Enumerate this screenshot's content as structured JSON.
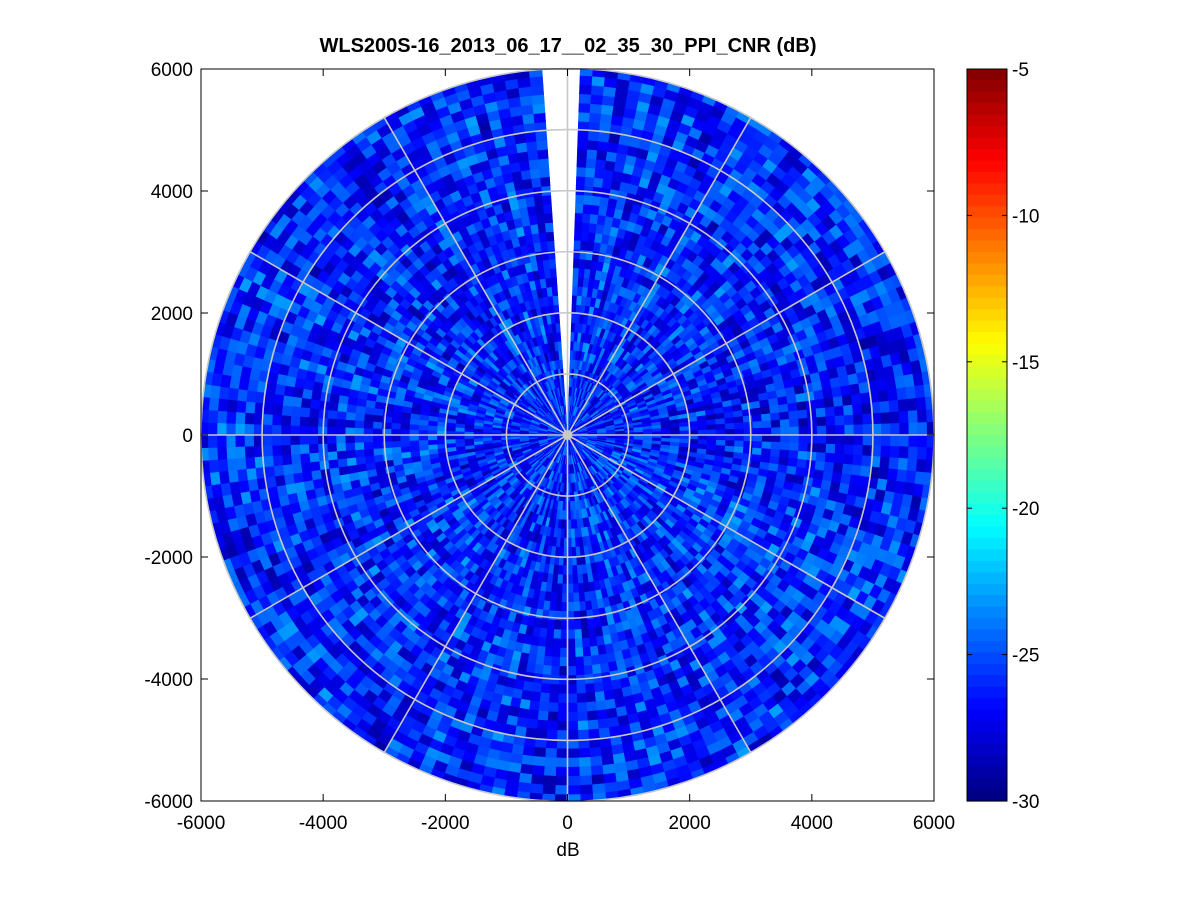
{
  "chart_data": {
    "type": "heatmap",
    "subtype": "polar-ppi",
    "title": "WLS200S-16_2013_06_17__02_35_30_PPI_CNR (dB)",
    "xlabel": "dB",
    "ylabel": "",
    "xlim": [
      -6000,
      6000
    ],
    "ylim": [
      -6000,
      6000
    ],
    "xticks": [
      -6000,
      -4000,
      -2000,
      0,
      2000,
      4000,
      6000
    ],
    "yticks": [
      6000,
      4000,
      2000,
      0,
      -2000,
      -4000,
      -6000
    ],
    "max_range": 6000,
    "range_rings": [
      1000,
      2000,
      3000,
      4000,
      5000,
      6000
    ],
    "spoke_angles_deg": [
      0,
      30,
      60,
      90,
      120,
      150,
      180,
      210,
      240,
      270,
      300,
      330
    ],
    "missing_sector_deg": [
      356,
      2
    ],
    "colorbar": {
      "clim": [
        -30,
        -5
      ],
      "ticks": [
        -5,
        -10,
        -15,
        -20,
        -25,
        -30
      ],
      "colormap": "jet"
    },
    "field_summary": {
      "typical_cnr_db": -26,
      "variation_db": 2.5
    },
    "colors": {
      "grid": "#c8c8c8",
      "axes": "#000000",
      "background": "#ffffff"
    }
  }
}
